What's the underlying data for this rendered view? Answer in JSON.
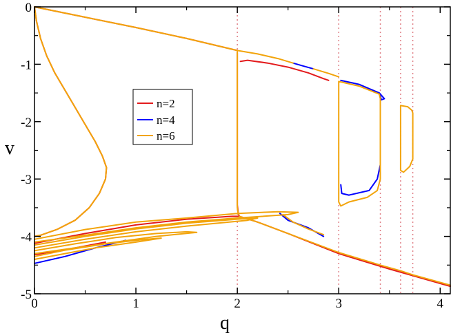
{
  "chart_data": {
    "type": "line",
    "xlabel": "q",
    "ylabel": "v",
    "xlim": [
      0,
      4.1
    ],
    "ylim": [
      -5,
      0
    ],
    "xticks": [
      0,
      1,
      2,
      3,
      4
    ],
    "xtick_labels": [
      "0",
      "1",
      "2",
      "3",
      "4"
    ],
    "yticks": [
      0,
      -1,
      -2,
      -3,
      -4,
      -5
    ],
    "ytick_labels": [
      "0",
      "-1",
      "-2",
      "-3",
      "-4",
      "-5"
    ],
    "grid": false,
    "legend_position": "upper-left-center",
    "vertical_reference_lines": [
      2.0,
      3.0,
      3.41,
      3.61,
      3.73
    ],
    "reference_line_color": "#e07f86",
    "series": [
      {
        "name": "n=2",
        "color": "#e31a1c",
        "segments": [
          [
            [
              0,
              0
            ],
            [
              0.02,
              -0.25
            ],
            [
              0.06,
              -0.55
            ],
            [
              0.12,
              -0.85
            ],
            [
              0.2,
              -1.15
            ],
            [
              0.3,
              -1.45
            ],
            [
              0.4,
              -1.75
            ],
            [
              0.5,
              -2.05
            ],
            [
              0.6,
              -2.35
            ],
            [
              0.67,
              -2.6
            ],
            [
              0.71,
              -2.8
            ],
            [
              0.7,
              -3.0
            ],
            [
              0.64,
              -3.25
            ],
            [
              0.54,
              -3.5
            ],
            [
              0.4,
              -3.72
            ],
            [
              0.22,
              -3.88
            ],
            [
              0.06,
              -3.98
            ],
            [
              0,
              -4.0
            ]
          ],
          [
            [
              0,
              0
            ],
            [
              0.5,
              -0.18
            ],
            [
              1.0,
              -0.36
            ],
            [
              1.5,
              -0.55
            ],
            [
              2.0,
              -0.76
            ]
          ],
          [
            [
              2.03,
              -0.95
            ],
            [
              2.1,
              -0.93
            ],
            [
              2.3,
              -0.98
            ],
            [
              2.5,
              -1.05
            ],
            [
              2.7,
              -1.15
            ],
            [
              2.85,
              -1.25
            ],
            [
              2.9,
              -1.28
            ]
          ],
          [
            [
              2.0,
              -0.8
            ],
            [
              2.0,
              -3.45
            ],
            [
              2.01,
              -3.6
            ],
            [
              2.02,
              -3.65
            ]
          ],
          [
            [
              2.02,
              -3.65
            ],
            [
              2.2,
              -3.75
            ],
            [
              2.5,
              -3.95
            ],
            [
              3.0,
              -4.3
            ],
            [
              3.5,
              -4.57
            ],
            [
              4.1,
              -4.87
            ]
          ],
          [
            [
              0,
              -4.12
            ],
            [
              0.5,
              -3.95
            ],
            [
              1.0,
              -3.8
            ],
            [
              1.5,
              -3.7
            ],
            [
              1.95,
              -3.65
            ],
            [
              2.02,
              -3.65
            ]
          ],
          [
            [
              0,
              -4.32
            ],
            [
              0.4,
              -4.2
            ],
            [
              0.7,
              -4.1
            ]
          ]
        ]
      },
      {
        "name": "n=4",
        "color": "#0000ff",
        "segments": [
          [
            [
              2.55,
              -0.98
            ],
            [
              2.65,
              -1.03
            ],
            [
              2.75,
              -1.08
            ]
          ],
          [
            [
              3.02,
              -1.28
            ],
            [
              3.2,
              -1.35
            ],
            [
              3.4,
              -1.5
            ],
            [
              3.45,
              -1.6
            ],
            [
              3.42,
              -1.62
            ],
            [
              3.41,
              -1.55
            ]
          ],
          [
            [
              3.41,
              -2.75
            ],
            [
              3.38,
              -3.0
            ],
            [
              3.3,
              -3.2
            ],
            [
              3.1,
              -3.28
            ],
            [
              3.03,
              -3.25
            ],
            [
              3.02,
              -3.1
            ]
          ],
          [
            [
              0,
              -4.47
            ],
            [
              0.3,
              -4.35
            ],
            [
              0.6,
              -4.2
            ],
            [
              0.9,
              -4.07
            ]
          ],
          [
            [
              2.42,
              -3.6
            ],
            [
              2.5,
              -3.72
            ],
            [
              2.7,
              -3.85
            ],
            [
              2.85,
              -4.0
            ]
          ]
        ]
      },
      {
        "name": "n=6",
        "color": "#f2a40b",
        "segments": [
          [
            [
              0,
              0
            ],
            [
              0.02,
              -0.25
            ],
            [
              0.06,
              -0.55
            ],
            [
              0.12,
              -0.85
            ],
            [
              0.2,
              -1.15
            ],
            [
              0.3,
              -1.45
            ],
            [
              0.4,
              -1.75
            ],
            [
              0.5,
              -2.05
            ],
            [
              0.6,
              -2.35
            ],
            [
              0.67,
              -2.6
            ],
            [
              0.71,
              -2.8
            ],
            [
              0.7,
              -3.0
            ],
            [
              0.64,
              -3.25
            ],
            [
              0.54,
              -3.5
            ],
            [
              0.4,
              -3.72
            ],
            [
              0.22,
              -3.88
            ],
            [
              0.06,
              -3.98
            ],
            [
              0,
              -4.0
            ]
          ],
          [
            [
              0,
              0
            ],
            [
              0.5,
              -0.18
            ],
            [
              1.0,
              -0.36
            ],
            [
              1.5,
              -0.55
            ],
            [
              2.0,
              -0.76
            ],
            [
              2.2,
              -0.82
            ],
            [
              2.4,
              -0.9
            ],
            [
              2.55,
              -0.98
            ]
          ],
          [
            [
              2.75,
              -1.08
            ],
            [
              2.9,
              -1.16
            ],
            [
              3.0,
              -1.22
            ]
          ],
          [
            [
              2.0,
              -0.78
            ],
            [
              2.0,
              -3.5
            ],
            [
              2.01,
              -3.62
            ]
          ],
          [
            [
              2.02,
              -3.65
            ],
            [
              2.2,
              -3.75
            ],
            [
              2.5,
              -3.95
            ],
            [
              3.0,
              -4.28
            ],
            [
              3.41,
              -4.5
            ],
            [
              3.61,
              -4.6
            ],
            [
              3.73,
              -4.67
            ],
            [
              4.1,
              -4.85
            ]
          ],
          [
            [
              3.0,
              -1.3
            ],
            [
              3.2,
              -1.38
            ],
            [
              3.4,
              -1.52
            ],
            [
              3.41,
              -1.6
            ],
            [
              3.41,
              -3.0
            ],
            [
              3.38,
              -3.2
            ],
            [
              3.28,
              -3.32
            ],
            [
              3.1,
              -3.4
            ],
            [
              3.02,
              -3.47
            ],
            [
              3.0,
              -3.4
            ],
            [
              3.0,
              -1.3
            ]
          ],
          [
            [
              3.61,
              -1.72
            ],
            [
              3.68,
              -1.74
            ],
            [
              3.72,
              -1.8
            ],
            [
              3.73,
              -1.85
            ],
            [
              3.73,
              -2.65
            ],
            [
              3.7,
              -2.78
            ],
            [
              3.64,
              -2.88
            ],
            [
              3.61,
              -2.85
            ],
            [
              3.61,
              -1.72
            ]
          ],
          [
            [
              0,
              -4.05
            ],
            [
              0.5,
              -3.88
            ],
            [
              1.0,
              -3.75
            ],
            [
              1.5,
              -3.68
            ],
            [
              2.0,
              -3.6
            ],
            [
              2.4,
              -3.57
            ],
            [
              2.6,
              -3.58
            ],
            [
              2.5,
              -3.62
            ],
            [
              2.0,
              -3.68
            ],
            [
              1.5,
              -3.75
            ],
            [
              1.0,
              -3.85
            ],
            [
              0.5,
              -3.98
            ],
            [
              0,
              -4.1
            ]
          ],
          [
            [
              0,
              -4.15
            ],
            [
              0.5,
              -4.0
            ],
            [
              1.0,
              -3.87
            ],
            [
              1.5,
              -3.77
            ],
            [
              2.0,
              -3.7
            ],
            [
              2.2,
              -3.68
            ],
            [
              2.1,
              -3.72
            ],
            [
              1.5,
              -3.82
            ],
            [
              1.0,
              -3.92
            ],
            [
              0.5,
              -4.05
            ],
            [
              0,
              -4.2
            ]
          ],
          [
            [
              0,
              -4.25
            ],
            [
              0.4,
              -4.13
            ],
            [
              0.8,
              -4.02
            ],
            [
              1.2,
              -3.95
            ],
            [
              1.5,
              -3.92
            ],
            [
              1.6,
              -3.93
            ],
            [
              1.2,
              -4.0
            ],
            [
              0.8,
              -4.1
            ],
            [
              0.4,
              -4.2
            ],
            [
              0,
              -4.3
            ]
          ],
          [
            [
              0,
              -4.35
            ],
            [
              0.3,
              -4.24
            ],
            [
              0.7,
              -4.13
            ],
            [
              1.1,
              -4.05
            ],
            [
              1.25,
              -4.03
            ],
            [
              1.0,
              -4.1
            ],
            [
              0.6,
              -4.2
            ],
            [
              0.3,
              -4.3
            ],
            [
              0,
              -4.4
            ]
          ],
          [
            [
              2.45,
              -3.62
            ],
            [
              2.55,
              -3.75
            ],
            [
              2.7,
              -3.87
            ],
            [
              2.85,
              -3.97
            ]
          ]
        ]
      }
    ]
  }
}
